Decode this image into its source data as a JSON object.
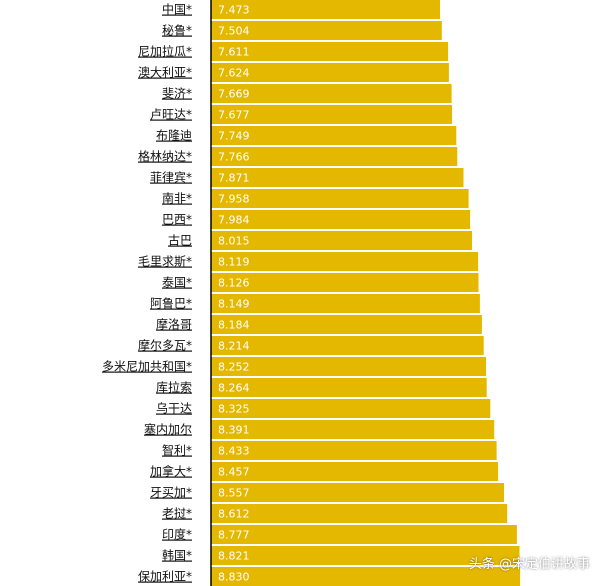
{
  "chart_data": {
    "type": "bar",
    "orientation": "horizontal",
    "bar_color": "#E5B800",
    "axis_color": "#000000",
    "categories": [
      "中国*",
      "秘鲁*",
      "尼加拉瓜*",
      "澳大利亚*",
      "斐济*",
      "卢旺达*",
      "布隆迪",
      "格林纳达*",
      "菲律宾*",
      "南非*",
      "巴西*",
      "古巴",
      "毛里求斯*",
      "泰国*",
      "阿鲁巴*",
      "摩洛哥",
      "摩尔多瓦*",
      "多米尼加共和国*",
      "库拉索",
      "乌干达",
      "塞内加尔",
      "智利*",
      "加拿大*",
      "牙买加*",
      "老挝*",
      "印度*",
      "韩国*",
      "保加利亚*"
    ],
    "values": [
      7.473,
      7.504,
      7.611,
      7.624,
      7.669,
      7.677,
      7.749,
      7.766,
      7.871,
      7.958,
      7.984,
      8.015,
      8.119,
      8.126,
      8.149,
      8.184,
      8.214,
      8.252,
      8.264,
      8.325,
      8.391,
      8.433,
      8.457,
      8.557,
      8.612,
      8.777,
      8.821,
      8.83
    ],
    "value_labels": [
      "7.473",
      "7.504",
      "7.611",
      "7.624",
      "7.669",
      "7.677",
      "7.749",
      "7.766",
      "7.871",
      "7.958",
      "7.984",
      "8.015",
      "8.119",
      "8.126",
      "8.149",
      "8.184",
      "8.214",
      "8.252",
      "8.264",
      "8.325",
      "8.391",
      "8.433",
      "8.457",
      "8.557",
      "8.612",
      "8.777",
      "8.821",
      "8.830"
    ]
  },
  "watermark": "头条 @宋定伯讲故事"
}
